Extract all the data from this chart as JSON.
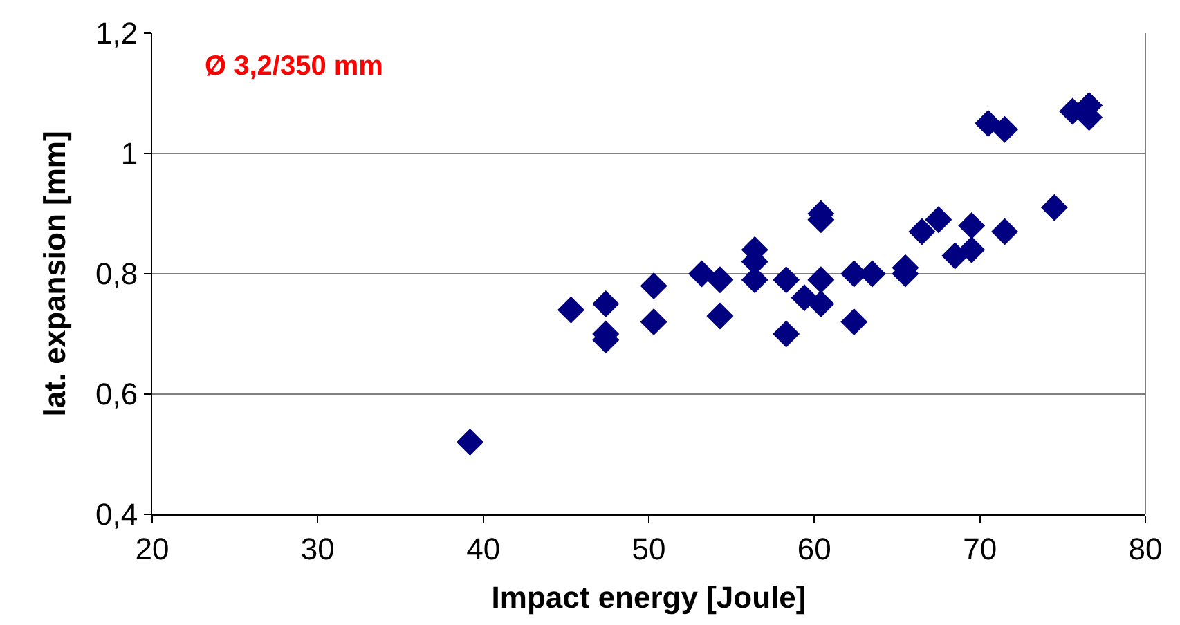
{
  "chart_data": {
    "type": "scatter",
    "xlabel": "Impact energy [Joule]",
    "ylabel": "lat. expansion [mm]",
    "annotations": [
      "Ø 3,2/350 mm"
    ],
    "x": [
      39.2,
      45.3,
      47.4,
      47.4,
      47.4,
      50.3,
      50.3,
      53.2,
      54.3,
      54.3,
      56.4,
      56.4,
      56.4,
      58.3,
      58.3,
      59.4,
      60.4,
      60.4,
      60.4,
      60.4,
      62.4,
      63.5,
      62.4,
      65.5,
      65.5,
      66.5,
      67.5,
      68.5,
      69.5,
      69.5,
      71.5,
      74.5,
      70.5,
      71.5,
      75.6,
      76.6,
      76.6
    ],
    "series": [
      {
        "color": "#000080",
        "values": [
          0.52,
          0.74,
          0.75,
          0.7,
          0.69,
          0.78,
          0.72,
          0.8,
          0.79,
          0.73,
          0.84,
          0.82,
          0.79,
          0.79,
          0.7,
          0.76,
          0.79,
          0.75,
          0.9,
          0.89,
          0.8,
          0.8,
          0.72,
          0.81,
          0.8,
          0.87,
          0.89,
          0.83,
          0.88,
          0.84,
          0.87,
          0.91,
          1.05,
          1.04,
          1.07,
          1.08,
          1.06
        ]
      }
    ],
    "marker": "diamond",
    "grid": "y",
    "legend": false,
    "xlim": [
      20,
      80
    ],
    "xticks": [
      20,
      30,
      40,
      50,
      60,
      70,
      80
    ],
    "ylim": [
      0.4,
      1.2
    ],
    "yticks": [
      {
        "value": 0.4,
        "label": "0,4"
      },
      {
        "value": 0.6,
        "label": "0,6"
      },
      {
        "value": 0.8,
        "label": "0,8"
      },
      {
        "value": 1,
        "label": "1"
      },
      {
        "value": 1.2,
        "label": "1,2"
      }
    ]
  }
}
